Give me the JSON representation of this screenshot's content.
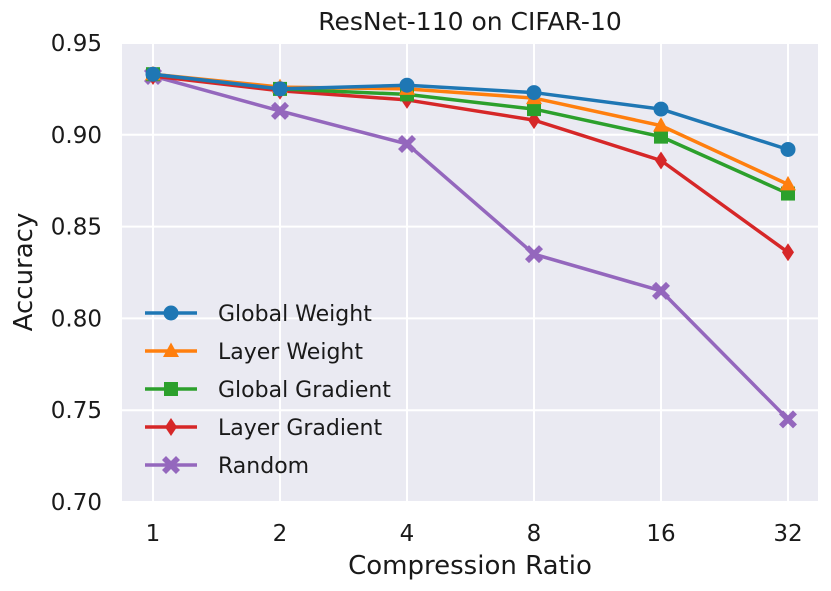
{
  "chart_data": {
    "type": "line",
    "title": "ResNet-110 on CIFAR-10",
    "xlabel": "Compression Ratio",
    "ylabel": "Accuracy",
    "categories": [
      "1",
      "2",
      "4",
      "8",
      "16",
      "32"
    ],
    "yticks": [
      "0.70",
      "0.75",
      "0.80",
      "0.85",
      "0.90",
      "0.95"
    ],
    "ylim": [
      0.7,
      0.95
    ],
    "grid": true,
    "legend_position": "center-left",
    "series": [
      {
        "name": "Global Weight",
        "color": "#1f77b4",
        "marker": "circle",
        "values": [
          0.933,
          0.925,
          0.927,
          0.923,
          0.914,
          0.892
        ]
      },
      {
        "name": "Layer Weight",
        "color": "#ff7f0e",
        "marker": "triangle",
        "values": [
          0.933,
          0.926,
          0.925,
          0.92,
          0.905,
          0.873
        ]
      },
      {
        "name": "Global Gradient",
        "color": "#2ca02c",
        "marker": "square",
        "values": [
          0.933,
          0.925,
          0.922,
          0.914,
          0.899,
          0.868
        ]
      },
      {
        "name": "Layer Gradient",
        "color": "#d62728",
        "marker": "diamond",
        "values": [
          0.932,
          0.924,
          0.919,
          0.908,
          0.886,
          0.836
        ]
      },
      {
        "name": "Random",
        "color": "#9467bd",
        "marker": "x",
        "values": [
          0.932,
          0.913,
          0.895,
          0.835,
          0.815,
          0.745
        ]
      }
    ]
  }
}
